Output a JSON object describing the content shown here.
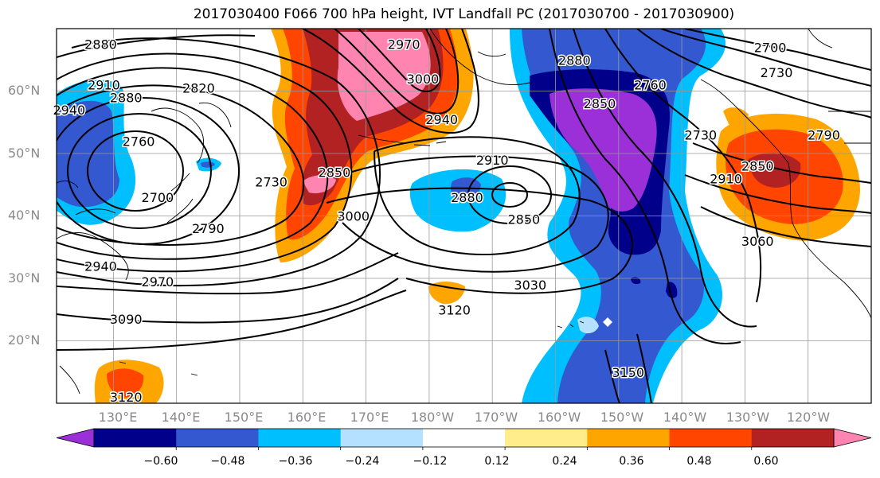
{
  "title": "2017030400 F066 700 hPa height, IVT Landfall PC (2017030700 - 2017030900)",
  "map": {
    "projection": "equirectangular",
    "lon_range_east": [
      121,
      250
    ],
    "lat_range": [
      10,
      70
    ],
    "lat_ticks": [
      {
        "value": 20,
        "label": "20°N"
      },
      {
        "value": 30,
        "label": "30°N"
      },
      {
        "value": 40,
        "label": "40°N"
      },
      {
        "value": 50,
        "label": "50°N"
      },
      {
        "value": 60,
        "label": "60°N"
      }
    ],
    "lon_ticks": [
      {
        "value": 130,
        "label": "130°E"
      },
      {
        "value": 140,
        "label": "140°E"
      },
      {
        "value": 150,
        "label": "150°E"
      },
      {
        "value": 160,
        "label": "160°E"
      },
      {
        "value": 170,
        "label": "170°E"
      },
      {
        "value": 180,
        "label": "180°W"
      },
      {
        "value": 190,
        "label": "170°W"
      },
      {
        "value": 200,
        "label": "160°W"
      },
      {
        "value": 210,
        "label": "150°W"
      },
      {
        "value": 220,
        "label": "140°W"
      },
      {
        "value": 230,
        "label": "130°W"
      },
      {
        "value": 240,
        "label": "120°W"
      }
    ],
    "gridlines": true,
    "contour_labels": [
      {
        "text": "2880",
        "lon": 128,
        "lat": 67.5
      },
      {
        "text": "2910",
        "lon": 128.5,
        "lat": 61
      },
      {
        "text": "2940",
        "lon": 123,
        "lat": 57
      },
      {
        "text": "2880",
        "lon": 132,
        "lat": 59
      },
      {
        "text": "2820",
        "lon": 143.5,
        "lat": 60.5
      },
      {
        "text": "2760",
        "lon": 134,
        "lat": 52
      },
      {
        "text": "2700",
        "lon": 137,
        "lat": 43
      },
      {
        "text": "2730",
        "lon": 155,
        "lat": 45.5
      },
      {
        "text": "2790",
        "lon": 145,
        "lat": 38
      },
      {
        "text": "2940",
        "lon": 128,
        "lat": 32
      },
      {
        "text": "2970",
        "lon": 137,
        "lat": 29.5
      },
      {
        "text": "3090",
        "lon": 132,
        "lat": 23.5
      },
      {
        "text": "3120",
        "lon": 132,
        "lat": 11
      },
      {
        "text": "2970",
        "lon": 176,
        "lat": 67.5
      },
      {
        "text": "3000",
        "lon": 179,
        "lat": 62
      },
      {
        "text": "2940",
        "lon": 182,
        "lat": 55.5
      },
      {
        "text": "2850",
        "lon": 165,
        "lat": 47
      },
      {
        "text": "3000",
        "lon": 168,
        "lat": 40
      },
      {
        "text": "2910",
        "lon": 190,
        "lat": 49
      },
      {
        "text": "2880",
        "lon": 186,
        "lat": 43
      },
      {
        "text": "2850",
        "lon": 195,
        "lat": 39.5
      },
      {
        "text": "3030",
        "lon": 196,
        "lat": 29
      },
      {
        "text": "3120",
        "lon": 184,
        "lat": 25
      },
      {
        "text": "2880",
        "lon": 203,
        "lat": 65
      },
      {
        "text": "2850",
        "lon": 207,
        "lat": 58
      },
      {
        "text": "2760",
        "lon": 215,
        "lat": 61
      },
      {
        "text": "2700",
        "lon": 234,
        "lat": 67
      },
      {
        "text": "2730",
        "lon": 235,
        "lat": 63
      },
      {
        "text": "2730",
        "lon": 223,
        "lat": 53
      },
      {
        "text": "2790",
        "lon": 242.5,
        "lat": 53
      },
      {
        "text": "2910",
        "lon": 227,
        "lat": 46
      },
      {
        "text": "2850",
        "lon": 232,
        "lat": 48
      },
      {
        "text": "3060",
        "lon": 232,
        "lat": 36
      },
      {
        "text": "3150",
        "lon": 211.5,
        "lat": 15
      }
    ]
  },
  "colorbar": {
    "colors": [
      "#9b30d9",
      "#00008b",
      "#3458d0",
      "#00bfff",
      "#b3e1ff",
      "#ffffff",
      "#ffec8b",
      "#ffa500",
      "#ff4500",
      "#b22222",
      "#ff85b0"
    ],
    "extend": "both",
    "tick_labels": [
      "−0.60",
      "−0.48",
      "−0.36",
      "−0.24",
      "−0.12",
      "0.12",
      "0.24",
      "0.36",
      "0.48",
      "0.60"
    ]
  }
}
